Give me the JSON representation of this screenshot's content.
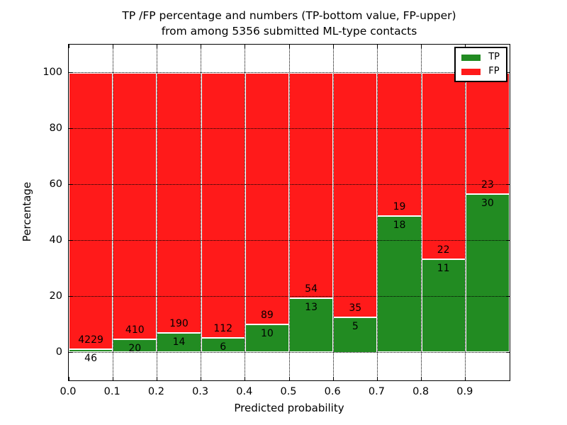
{
  "figure": {
    "title_line1": "TP /FP percentage and numbers (TP-bottom value, FP-upper)",
    "title_line2": "from among 5356 submitted ML-type contacts",
    "xlabel": "Predicted probability",
    "ylabel": "Percentage"
  },
  "legend": {
    "position": "upper right",
    "items": [
      {
        "label": "TP",
        "color": "#228b22"
      },
      {
        "label": "FP",
        "color": "#ff1a1a"
      }
    ]
  },
  "chart_data": {
    "type": "bar",
    "subtype": "stacked-100-percent",
    "title": "TP /FP percentage and numbers (TP-bottom value, FP-upper) from among 5356 submitted ML-type contacts",
    "xlabel": "Predicted probability",
    "ylabel": "Percentage",
    "total_submitted": 5356,
    "grid": true,
    "grid_style": "dotted",
    "xlim": [
      0.0,
      1.0
    ],
    "ylim": [
      -10,
      110
    ],
    "bin_width": 0.1,
    "x_bins": [
      0.0,
      0.1,
      0.2,
      0.3,
      0.4,
      0.5,
      0.6,
      0.7,
      0.8,
      0.9
    ],
    "x_tick_labels": [
      "0.0",
      "0.1",
      "0.2",
      "0.3",
      "0.4",
      "0.5",
      "0.6",
      "0.7",
      "0.8",
      "0.9"
    ],
    "y_ticks": [
      0,
      20,
      40,
      60,
      80,
      100
    ],
    "y_tick_labels": [
      "0",
      "20",
      "40",
      "60",
      "80",
      "100"
    ],
    "series": [
      {
        "name": "TP",
        "color": "#228b22",
        "counts": [
          46,
          20,
          14,
          6,
          10,
          13,
          5,
          18,
          11,
          30
        ]
      },
      {
        "name": "FP",
        "color": "#ff1a1a",
        "counts": [
          4229,
          410,
          190,
          112,
          89,
          54,
          35,
          19,
          22,
          23
        ]
      }
    ],
    "tp_percent_by_bin": [
      1.1,
      4.7,
      6.9,
      5.1,
      10.1,
      19.4,
      12.5,
      48.6,
      33.3,
      56.6
    ]
  }
}
